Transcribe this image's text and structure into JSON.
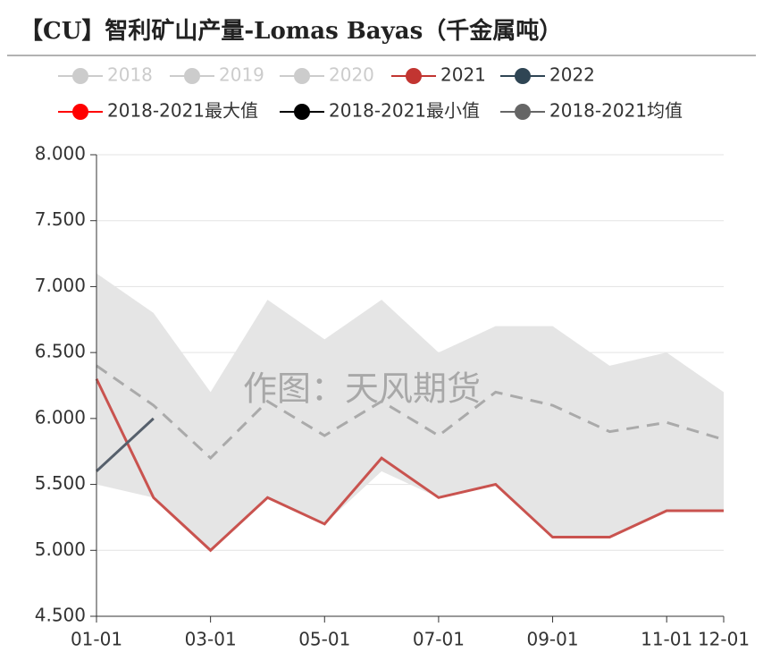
{
  "chart_data": {
    "type": "line",
    "title": "【CU】智利矿山产量-Lomas Bayas（千金属吨）",
    "watermark": "作图：天风期货",
    "categories": [
      "01-01",
      null,
      "03-01",
      null,
      "05-01",
      null,
      "07-01",
      null,
      "09-01",
      null,
      "11-01",
      "12-01"
    ],
    "series": [
      {
        "name": "2018",
        "color": "#cccccc",
        "disabled": true,
        "style": "line",
        "values": [
          null,
          null,
          null,
          null,
          null,
          null,
          null,
          null,
          null,
          null,
          null,
          null
        ]
      },
      {
        "name": "2019",
        "color": "#cccccc",
        "disabled": true,
        "style": "line",
        "values": [
          null,
          null,
          null,
          null,
          null,
          null,
          null,
          null,
          null,
          null,
          null,
          null
        ]
      },
      {
        "name": "2020",
        "color": "#cccccc",
        "disabled": true,
        "style": "line",
        "values": [
          null,
          null,
          null,
          null,
          null,
          null,
          null,
          null,
          null,
          null,
          null,
          null
        ]
      },
      {
        "name": "2021",
        "color": "#c23531",
        "style": "line",
        "values": [
          6.3,
          5.4,
          5.0,
          5.4,
          5.2,
          5.7,
          5.4,
          5.5,
          5.1,
          5.1,
          5.3,
          5.3
        ]
      },
      {
        "name": "2022",
        "color": "#2f4554",
        "style": "line",
        "values": [
          5.6,
          6.0,
          null,
          null,
          null,
          null,
          null,
          null,
          null,
          null,
          null,
          null
        ]
      },
      {
        "name": "2018-2021最大值",
        "color": "#ff0000",
        "style": "band-upper",
        "values": [
          7.1,
          6.8,
          6.2,
          6.9,
          6.6,
          6.9,
          6.5,
          6.7,
          6.7,
          6.4,
          6.5,
          6.2
        ]
      },
      {
        "name": "2018-2021最小值",
        "color": "#000000",
        "style": "band-lower",
        "values": [
          5.5,
          5.4,
          5.0,
          5.4,
          5.2,
          5.6,
          5.4,
          5.5,
          5.1,
          5.1,
          5.3,
          5.3
        ]
      },
      {
        "name": "2018-2021均值",
        "color": "#666666",
        "style": "dashed",
        "values": [
          6.4,
          6.1,
          5.7,
          6.13,
          5.87,
          6.13,
          5.87,
          6.2,
          6.1,
          5.9,
          5.97,
          5.84
        ]
      }
    ],
    "ylim": [
      4.5,
      8.0
    ],
    "yticks": [
      {
        "value": 4.5,
        "label": "4.500"
      },
      {
        "value": 5.0,
        "label": "5.000"
      },
      {
        "value": 5.5,
        "label": "5.500"
      },
      {
        "value": 6.0,
        "label": "6.000"
      },
      {
        "value": 6.5,
        "label": "6.500"
      },
      {
        "value": 7.0,
        "label": "7.000"
      },
      {
        "value": 7.5,
        "label": "7.500"
      },
      {
        "value": 8.0,
        "label": "8.000"
      }
    ],
    "grid": true
  }
}
